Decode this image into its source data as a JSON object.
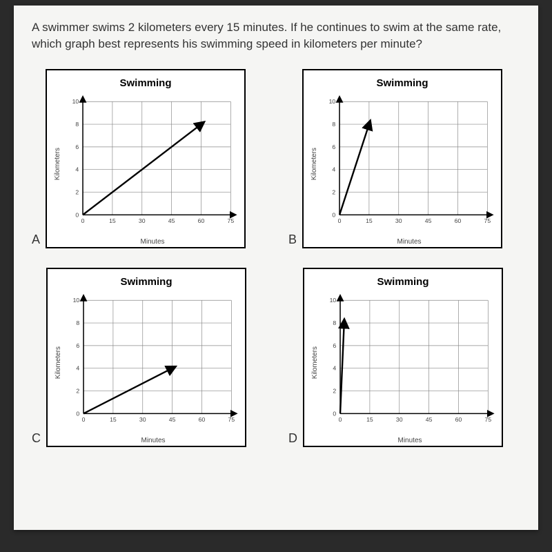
{
  "question": "A swimmer swims 2 kilometers every 15 minutes. If he continues to swim at the same rate, which graph best represents his swimming speed in kilometers per minute?",
  "shared": {
    "title": "Swimming",
    "ylabel": "Kilometers",
    "xlabel": "Minutes",
    "xlim": [
      0,
      75
    ],
    "ylim": [
      0,
      10
    ],
    "xtick_step": 15,
    "ytick_step": 2,
    "xticks": [
      0,
      15,
      30,
      45,
      60,
      75
    ],
    "yticks": [
      0,
      2,
      4,
      6,
      8,
      10
    ],
    "grid_color": "#888888",
    "axis_color": "#000000",
    "line_color": "#000000",
    "background_color": "#ffffff",
    "line_width": 2.5,
    "arrow_size": 7,
    "tick_fontsize": 9,
    "label_fontsize": 10,
    "title_fontsize": 15
  },
  "charts": [
    {
      "letter": "A",
      "type": "line",
      "line": {
        "x1": 0,
        "y1": 0,
        "x2": 60,
        "y2": 8
      }
    },
    {
      "letter": "B",
      "type": "line",
      "line": {
        "x1": 0,
        "y1": 0,
        "x2": 15,
        "y2": 8
      }
    },
    {
      "letter": "C",
      "type": "line",
      "line": {
        "x1": 0,
        "y1": 0,
        "x2": 45,
        "y2": 4
      }
    },
    {
      "letter": "D",
      "type": "line",
      "line": {
        "x1": 0,
        "y1": 0,
        "x2": 2,
        "y2": 8
      }
    }
  ]
}
